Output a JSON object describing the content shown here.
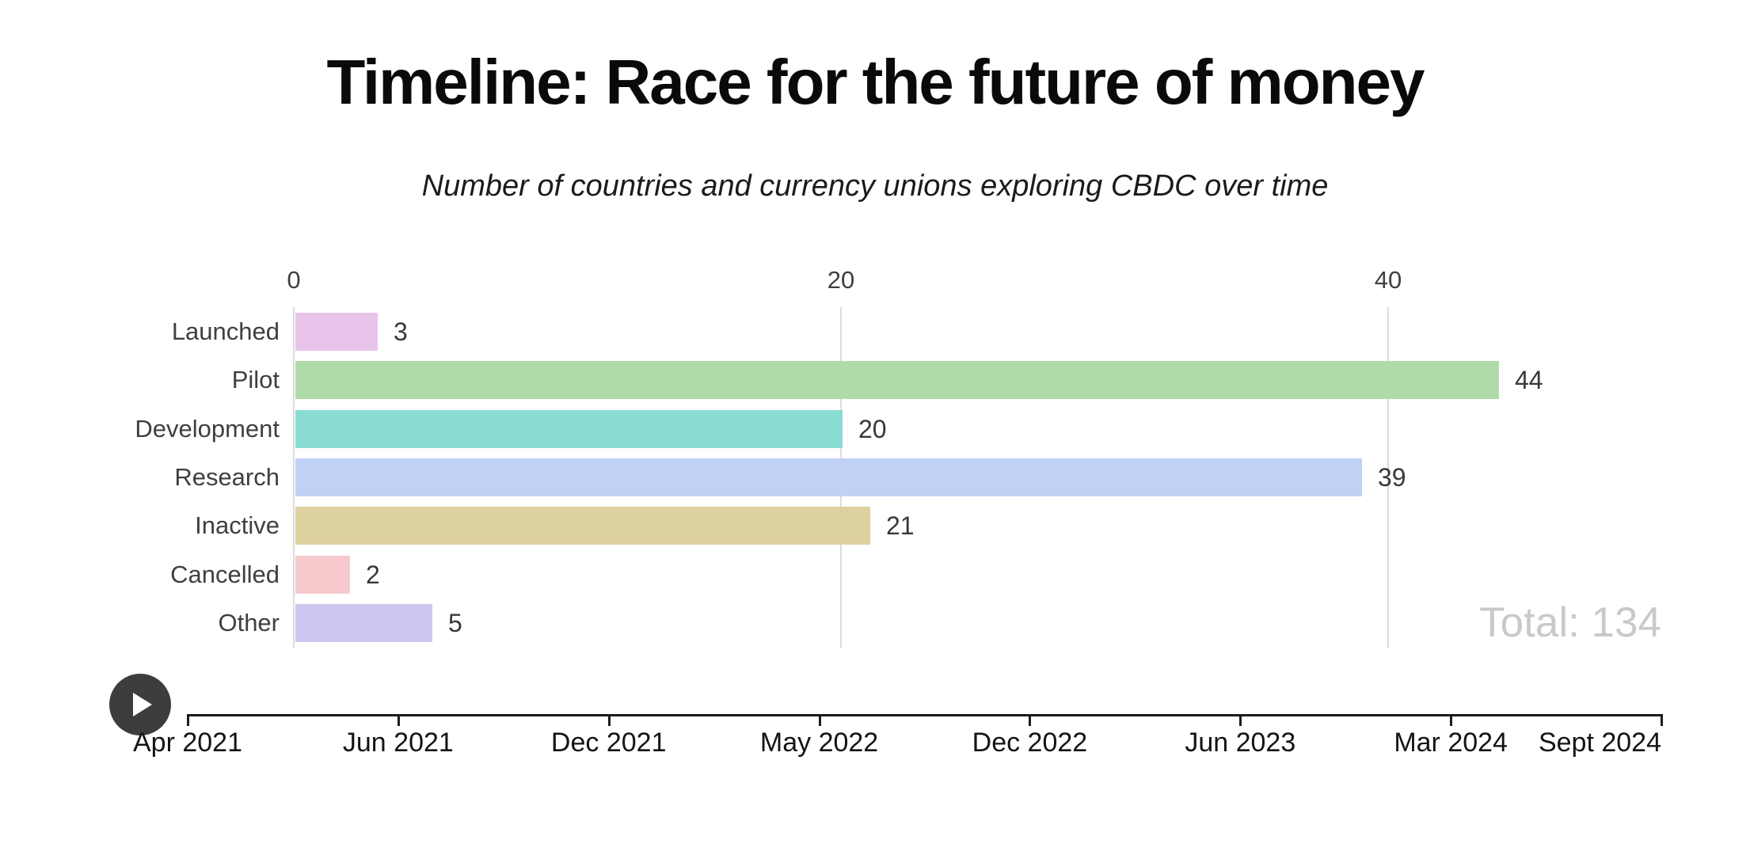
{
  "header": {
    "title": "Timeline: Race for the future of money",
    "subtitle": "Number of countries and currency unions exploring CBDC over time"
  },
  "chart_data": {
    "type": "bar",
    "orientation": "horizontal",
    "title": "Timeline: Race for the future of money",
    "subtitle": "Number of countries and currency unions exploring CBDC over time",
    "categories": [
      "Launched",
      "Pilot",
      "Development",
      "Research",
      "Inactive",
      "Cancelled",
      "Other"
    ],
    "values": [
      3,
      44,
      20,
      39,
      21,
      2,
      5
    ],
    "bar_colors": [
      "#e8c4eb",
      "#afdaa9",
      "#8adcd2",
      "#c1d1f6",
      "#ddd1a0",
      "#f6cacd",
      "#cfc5f1"
    ],
    "x_axis": {
      "position": "top",
      "ticks": [
        0,
        20,
        40
      ],
      "range": [
        0,
        44.5
      ],
      "gridlines": true
    },
    "total_label": "Total: 134",
    "legend": "none"
  },
  "timeline": {
    "labels": [
      "Apr 2021",
      "Jun 2021",
      "Dec 2021",
      "May 2022",
      "Dec 2022",
      "Jun 2023",
      "Mar 2024",
      "Sept 2024"
    ]
  },
  "colors": {
    "background": "#ffffff",
    "gridline": "#dcdcdc",
    "axis_text": "#404040",
    "value_text": "#383838",
    "timeline_text": "#141414",
    "total_text": "#c9c9c9",
    "play_button": "#3d3d3d",
    "timeline_line": "#1c1c1c"
  }
}
